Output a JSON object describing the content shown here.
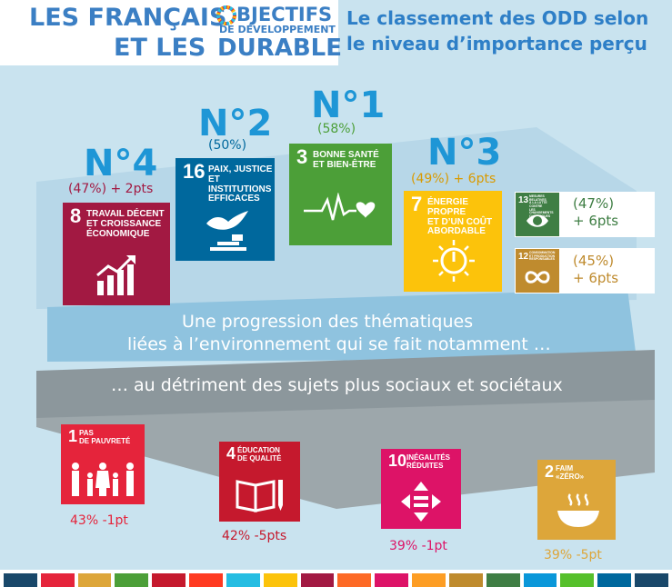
{
  "header": {
    "line1_left": "LES FRANÇAIS",
    "line2_left": "ET LES",
    "objectifs": "BJECTIFS",
    "de_developpement": "DE DÉVELOPPEMENT",
    "durable": "DURABLE",
    "subtitle_line1": "Le classement des ODD selon",
    "subtitle_line2": "le niveau d’importance perçu"
  },
  "colors": {
    "background": "#c9e3ef",
    "band_light": "#8fc3df",
    "band_grey": "#8c979c",
    "funnel_light": "#b7d7e8",
    "rank_blue": "#1e96d6",
    "sdg1": "#e5243b",
    "sdg2": "#dda63a",
    "sdg3": "#4c9f38",
    "sdg4": "#c5192d",
    "sdg5": "#ff3a21",
    "sdg6": "#26bde2",
    "sdg7": "#fcc30b",
    "sdg8": "#a21942",
    "sdg9": "#fd6925",
    "sdg10": "#dd1367",
    "sdg11": "#fd9d24",
    "sdg12": "#bf8b2e",
    "sdg13": "#3f7e44",
    "sdg14": "#0a97d9",
    "sdg15": "#56c02b",
    "sdg16": "#00689d",
    "sdg17": "#19486a"
  },
  "bands": {
    "light_line1": "Une progression des thématiques",
    "light_line2": "liées à l’environnement qui se fait notamment …",
    "grey_line": "… au détriment des sujets plus sociaux et sociétaux"
  },
  "top": [
    {
      "rank": "N°4",
      "stat": "(47%) + 2pts",
      "num": "8",
      "label_lines": [
        "Travail décent",
        "et croissance",
        "économique"
      ],
      "icon": "growth-chart-icon"
    },
    {
      "rank": "N°2",
      "stat": "(50%)",
      "num": "16",
      "label_lines": [
        "Paix, justice",
        "et institutions",
        "efficaces"
      ],
      "icon": "dove-gavel-icon"
    },
    {
      "rank": "N°1",
      "stat": "(58%)",
      "num": "3",
      "label_lines": [
        "Bonne santé",
        "et bien-être"
      ],
      "icon": "heartbeat-icon"
    },
    {
      "rank": "N°3",
      "stat": "(49%) + 6pts",
      "num": "7",
      "label_lines": [
        "Énergie propre",
        "et d’un coût",
        "abordable"
      ],
      "icon": "sun-power-icon"
    }
  ],
  "side": [
    {
      "num": "13",
      "label_lines": [
        "Mesures relatives",
        "à la lutte contre",
        "les changements",
        "climatiques"
      ],
      "stat_line1": "(47%)",
      "stat_line2": "+ 6pts",
      "icon": "eye-globe-icon"
    },
    {
      "num": "12",
      "label_lines": [
        "Consommation",
        "et production",
        "responsables"
      ],
      "stat_line1": "(45%)",
      "stat_line2": "+ 6pts",
      "icon": "infinity-icon"
    }
  ],
  "bottom": [
    {
      "num": "1",
      "label_lines": [
        "Pas",
        "de pauvreté"
      ],
      "stat": "43% -1pt",
      "icon": "family-icon"
    },
    {
      "num": "4",
      "label_lines": [
        "Éducation",
        "de qualité"
      ],
      "stat": "42% -5pts",
      "icon": "book-pencil-icon"
    },
    {
      "num": "10",
      "label_lines": [
        "Inégalités",
        "réduites"
      ],
      "stat": "39% -1pt",
      "icon": "equality-arrows-icon"
    },
    {
      "num": "2",
      "label_lines": [
        "Faim",
        "«zéro»"
      ],
      "stat": "39% -5pt",
      "icon": "bowl-icon"
    }
  ]
}
